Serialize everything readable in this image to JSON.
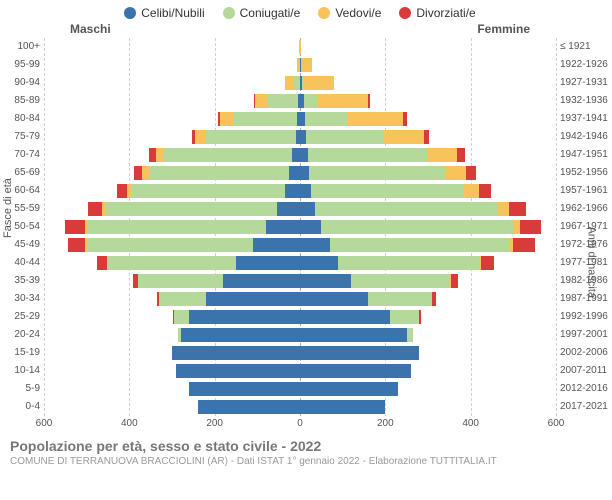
{
  "legend": [
    {
      "label": "Celibi/Nubili",
      "color": "#3b74ad"
    },
    {
      "label": "Coniugati/e",
      "color": "#b5d99a"
    },
    {
      "label": "Vedovi/e",
      "color": "#f7c35a"
    },
    {
      "label": "Divorziati/e",
      "color": "#d93b3b"
    }
  ],
  "gender": {
    "male": "Maschi",
    "female": "Femmine"
  },
  "axis": {
    "left_title": "Fasce di età",
    "right_title": "Anni di nascita",
    "xmax": 600,
    "xticks": [
      600,
      400,
      200,
      0,
      200,
      400,
      600
    ]
  },
  "colors": {
    "single": "#3b74ad",
    "married": "#b5d99a",
    "widowed": "#f7c35a",
    "divorced": "#d93b3b",
    "grid": "#d0d0d0",
    "center": "#aaaaaa",
    "bg": "#ffffff"
  },
  "footer": {
    "title": "Popolazione per età, sesso e stato civile - 2022",
    "subtitle": "COMUNE DI TERRANUOVA BRACCIOLINI (AR) - Dati ISTAT 1° gennaio 2022 - Elaborazione TUTTITALIA.IT"
  },
  "rows": [
    {
      "age": "100+",
      "birth": "≤ 1921",
      "m": {
        "s": 0,
        "c": 0,
        "w": 2,
        "d": 0
      },
      "f": {
        "s": 0,
        "c": 0,
        "w": 3,
        "d": 0
      }
    },
    {
      "age": "95-99",
      "birth": "1922-1926",
      "m": {
        "s": 0,
        "c": 2,
        "w": 5,
        "d": 0
      },
      "f": {
        "s": 2,
        "c": 0,
        "w": 25,
        "d": 0
      }
    },
    {
      "age": "90-94",
      "birth": "1927-1931",
      "m": {
        "s": 0,
        "c": 15,
        "w": 20,
        "d": 0
      },
      "f": {
        "s": 5,
        "c": 5,
        "w": 70,
        "d": 0
      }
    },
    {
      "age": "85-89",
      "birth": "1932-1936",
      "m": {
        "s": 5,
        "c": 70,
        "w": 30,
        "d": 2
      },
      "f": {
        "s": 10,
        "c": 30,
        "w": 120,
        "d": 3
      }
    },
    {
      "age": "80-84",
      "birth": "1937-1941",
      "m": {
        "s": 8,
        "c": 150,
        "w": 30,
        "d": 5
      },
      "f": {
        "s": 12,
        "c": 100,
        "w": 130,
        "d": 8
      }
    },
    {
      "age": "75-79",
      "birth": "1942-1946",
      "m": {
        "s": 10,
        "c": 210,
        "w": 25,
        "d": 8
      },
      "f": {
        "s": 15,
        "c": 180,
        "w": 95,
        "d": 12
      }
    },
    {
      "age": "70-74",
      "birth": "1947-1951",
      "m": {
        "s": 18,
        "c": 300,
        "w": 20,
        "d": 15
      },
      "f": {
        "s": 18,
        "c": 280,
        "w": 70,
        "d": 18
      }
    },
    {
      "age": "65-69",
      "birth": "1952-1956",
      "m": {
        "s": 25,
        "c": 330,
        "w": 15,
        "d": 20
      },
      "f": {
        "s": 20,
        "c": 320,
        "w": 50,
        "d": 22
      }
    },
    {
      "age": "60-64",
      "birth": "1957-1961",
      "m": {
        "s": 35,
        "c": 360,
        "w": 10,
        "d": 25
      },
      "f": {
        "s": 25,
        "c": 360,
        "w": 35,
        "d": 28
      }
    },
    {
      "age": "55-59",
      "birth": "1962-1966",
      "m": {
        "s": 55,
        "c": 400,
        "w": 8,
        "d": 35
      },
      "f": {
        "s": 35,
        "c": 430,
        "w": 25,
        "d": 40
      }
    },
    {
      "age": "50-54",
      "birth": "1967-1971",
      "m": {
        "s": 80,
        "c": 420,
        "w": 5,
        "d": 45
      },
      "f": {
        "s": 50,
        "c": 450,
        "w": 15,
        "d": 50
      }
    },
    {
      "age": "45-49",
      "birth": "1972-1976",
      "m": {
        "s": 110,
        "c": 390,
        "w": 3,
        "d": 40
      },
      "f": {
        "s": 70,
        "c": 420,
        "w": 10,
        "d": 50
      }
    },
    {
      "age": "40-44",
      "birth": "1977-1981",
      "m": {
        "s": 150,
        "c": 300,
        "w": 2,
        "d": 25
      },
      "f": {
        "s": 90,
        "c": 330,
        "w": 5,
        "d": 30
      }
    },
    {
      "age": "35-39",
      "birth": "1982-1986",
      "m": {
        "s": 180,
        "c": 200,
        "w": 0,
        "d": 12
      },
      "f": {
        "s": 120,
        "c": 230,
        "w": 3,
        "d": 18
      }
    },
    {
      "age": "30-34",
      "birth": "1987-1991",
      "m": {
        "s": 220,
        "c": 110,
        "w": 0,
        "d": 5
      },
      "f": {
        "s": 160,
        "c": 150,
        "w": 0,
        "d": 8
      }
    },
    {
      "age": "25-29",
      "birth": "1992-1996",
      "m": {
        "s": 260,
        "c": 35,
        "w": 0,
        "d": 2
      },
      "f": {
        "s": 210,
        "c": 70,
        "w": 0,
        "d": 3
      }
    },
    {
      "age": "20-24",
      "birth": "1997-2001",
      "m": {
        "s": 280,
        "c": 5,
        "w": 0,
        "d": 0
      },
      "f": {
        "s": 250,
        "c": 15,
        "w": 0,
        "d": 0
      }
    },
    {
      "age": "15-19",
      "birth": "2002-2006",
      "m": {
        "s": 300,
        "c": 0,
        "w": 0,
        "d": 0
      },
      "f": {
        "s": 280,
        "c": 0,
        "w": 0,
        "d": 0
      }
    },
    {
      "age": "10-14",
      "birth": "2007-2011",
      "m": {
        "s": 290,
        "c": 0,
        "w": 0,
        "d": 0
      },
      "f": {
        "s": 260,
        "c": 0,
        "w": 0,
        "d": 0
      }
    },
    {
      "age": "5-9",
      "birth": "2012-2016",
      "m": {
        "s": 260,
        "c": 0,
        "w": 0,
        "d": 0
      },
      "f": {
        "s": 230,
        "c": 0,
        "w": 0,
        "d": 0
      }
    },
    {
      "age": "0-4",
      "birth": "2017-2021",
      "m": {
        "s": 240,
        "c": 0,
        "w": 0,
        "d": 0
      },
      "f": {
        "s": 200,
        "c": 0,
        "w": 0,
        "d": 0
      }
    }
  ]
}
